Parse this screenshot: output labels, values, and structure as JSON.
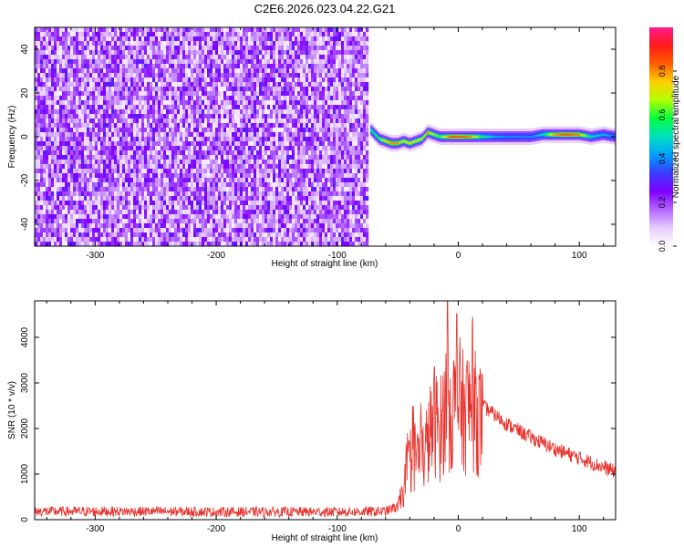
{
  "figure": {
    "title": "C2E6.2026.023.04.22.G21"
  },
  "colors": {
    "snr_line": "#e8302a",
    "frame": "#000000",
    "background": "#ffffff"
  },
  "chart_data": [
    {
      "type": "heatmap",
      "xlabel": "Height of straight line (km)",
      "ylabel": "Frequency (Hz)",
      "xlim": [
        -350,
        130
      ],
      "ylim": [
        -50,
        50
      ],
      "x_ticks": [
        -300,
        -200,
        -100,
        0,
        100
      ],
      "y_ticks": [
        -40,
        -20,
        0,
        20,
        40
      ],
      "colorbar": {
        "label": "Normalized spectral amplitude",
        "range": [
          0,
          1
        ],
        "ticks": [
          0.0,
          0.2,
          0.4,
          0.6,
          0.8
        ],
        "tick_labels": [
          "0.0",
          "0.2",
          "0.4",
          "0.6",
          "0.8"
        ],
        "colormap": [
          "#ffffff",
          "#e6ccff",
          "#b266ff",
          "#7f00ff",
          "#3a3aff",
          "#00a0ff",
          "#00e0c0",
          "#00ff40",
          "#b0ff00",
          "#ffd000",
          "#ff6000",
          "#ff1a1a",
          "#ff1a8c"
        ]
      },
      "noise_region_x": [
        -350,
        -75
      ],
      "signal_track": {
        "x": [
          -72,
          -65,
          -60,
          -55,
          -50,
          -45,
          -40,
          -35,
          -30,
          -25,
          -20,
          -15,
          -10,
          -5,
          0,
          10,
          20,
          30,
          40,
          50,
          60,
          70,
          80,
          90,
          100,
          110,
          120,
          130
        ],
        "frequency": [
          3,
          -1,
          -2,
          -3,
          -3,
          -2,
          -3,
          -2,
          -1,
          2,
          1,
          0,
          0,
          0,
          0,
          0,
          0,
          0,
          0,
          0,
          0,
          1,
          1,
          1,
          1,
          0,
          1,
          0
        ],
        "amplitude": [
          0.55,
          0.6,
          0.75,
          0.8,
          0.8,
          0.7,
          0.75,
          0.7,
          0.7,
          0.8,
          0.65,
          0.6,
          0.75,
          0.85,
          0.85,
          0.8,
          0.55,
          0.45,
          0.4,
          0.4,
          0.4,
          0.5,
          0.8,
          0.85,
          0.8,
          0.5,
          0.45,
          0.4
        ]
      }
    },
    {
      "type": "line",
      "xlabel": "Height of straight line (km)",
      "ylabel": "SNR (10 * v/v)",
      "xlim": [
        -350,
        130
      ],
      "ylim": [
        0,
        4800
      ],
      "x_ticks": [
        -300,
        -200,
        -100,
        0,
        100
      ],
      "y_ticks": [
        0,
        1000,
        2000,
        3000,
        4000
      ],
      "envelope": {
        "x": [
          -350,
          -300,
          -250,
          -200,
          -150,
          -100,
          -60,
          -50,
          -45,
          -40,
          -35,
          -30,
          -25,
          -20,
          -15,
          -10,
          -5,
          0,
          5,
          10,
          15,
          20,
          30,
          40,
          60,
          80,
          100,
          120,
          130
        ],
        "y": [
          180,
          180,
          180,
          170,
          170,
          170,
          180,
          300,
          800,
          1500,
          1700,
          1600,
          2000,
          2600,
          2300,
          3000,
          2800,
          3100,
          2700,
          3000,
          2700,
          2500,
          2300,
          2100,
          1800,
          1550,
          1350,
          1150,
          1050
        ]
      },
      "peak": {
        "x": -9,
        "y": 4800
      }
    }
  ]
}
